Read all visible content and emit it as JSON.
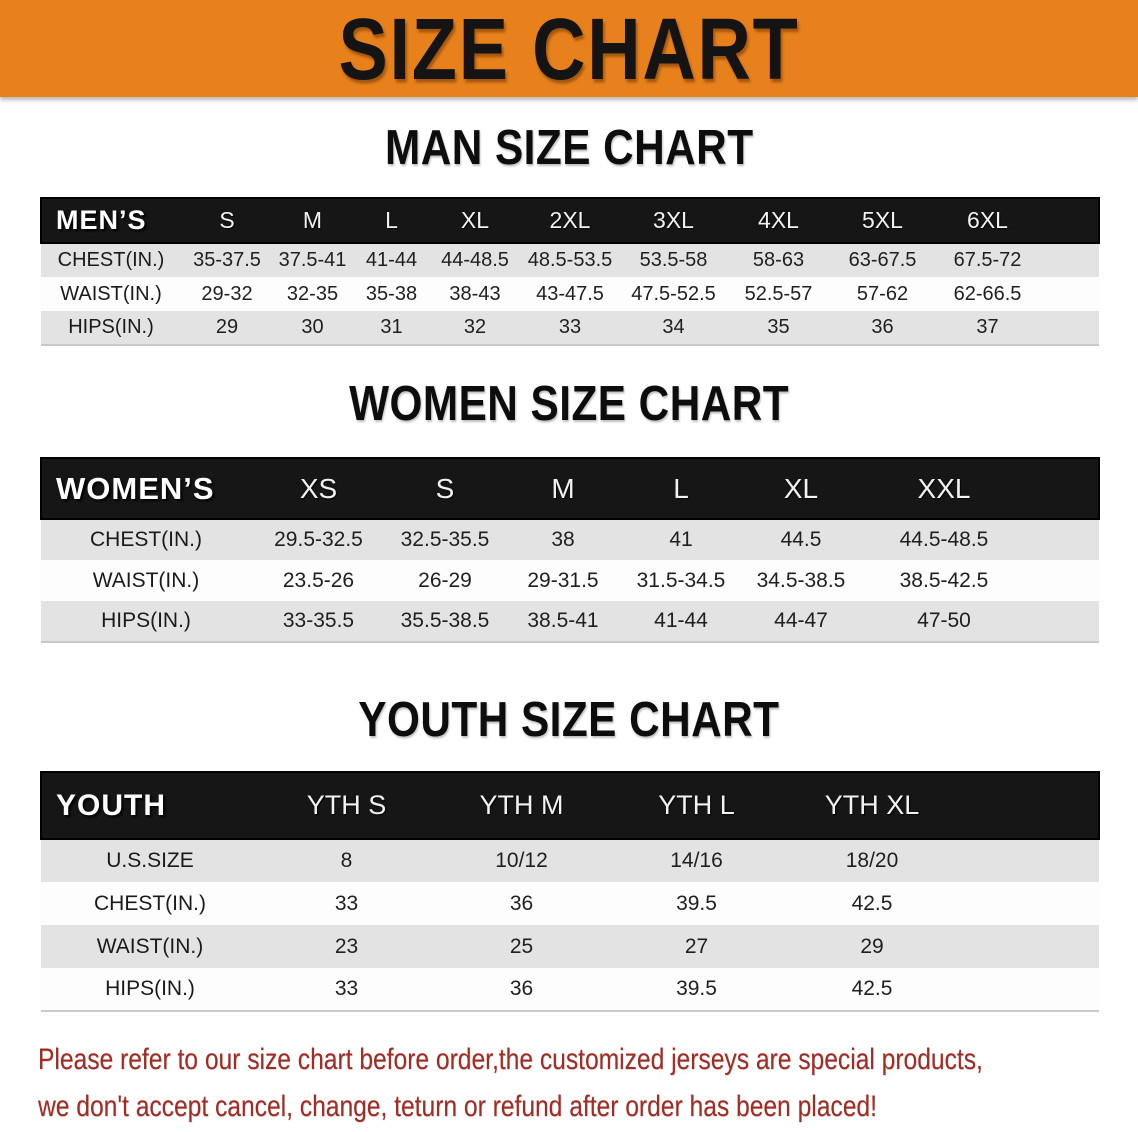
{
  "banner": {
    "title": "SIZE CHART",
    "bg_color": "#e8811b",
    "text_color": "#141414"
  },
  "sections": [
    {
      "id": "men",
      "heading": "MAN SIZE CHART",
      "header_label": "MEN’S",
      "columns": [
        "S",
        "M",
        "L",
        "XL",
        "2XL",
        "3XL",
        "4XL",
        "5XL",
        "6XL"
      ],
      "rows": [
        {
          "label": "CHEST(IN.)",
          "values": [
            "35-37.5",
            "37.5-41",
            "41-44",
            "44-48.5",
            "48.5-53.5",
            "53.5-58",
            "58-63",
            "63-67.5",
            "67.5-72"
          ]
        },
        {
          "label": "WAIST(IN.)",
          "values": [
            "29-32",
            "32-35",
            "35-38",
            "38-43",
            "43-47.5",
            "47.5-52.5",
            "52.5-57",
            "57-62",
            "62-66.5"
          ]
        },
        {
          "label": "HIPS(IN.)",
          "values": [
            "29",
            "30",
            "31",
            "32",
            "33",
            "34",
            "35",
            "36",
            "37"
          ]
        }
      ]
    },
    {
      "id": "women",
      "heading": "WOMEN SIZE CHART",
      "header_label": "WOMEN’S",
      "columns": [
        "XS",
        "S",
        "M",
        "L",
        "XL",
        "XXL"
      ],
      "rows": [
        {
          "label": "CHEST(IN.)",
          "values": [
            "29.5-32.5",
            "32.5-35.5",
            "38",
            "41",
            "44.5",
            "44.5-48.5"
          ]
        },
        {
          "label": "WAIST(IN.)",
          "values": [
            "23.5-26",
            "26-29",
            "29-31.5",
            "31.5-34.5",
            "34.5-38.5",
            "38.5-42.5"
          ]
        },
        {
          "label": "HIPS(IN.)",
          "values": [
            "33-35.5",
            "35.5-38.5",
            "38.5-41",
            "41-44",
            "44-47",
            "47-50"
          ]
        }
      ]
    },
    {
      "id": "youth",
      "heading": "YOUTH SIZE CHART",
      "header_label": "YOUTH",
      "columns": [
        "YTH S",
        "YTH M",
        "YTH L",
        "YTH XL"
      ],
      "rows": [
        {
          "label": "U.S.SIZE",
          "values": [
            "8",
            "10/12",
            "14/16",
            "18/20"
          ]
        },
        {
          "label": "CHEST(IN.)",
          "values": [
            "33",
            "36",
            "39.5",
            "42.5"
          ]
        },
        {
          "label": "WAIST(IN.)",
          "values": [
            "23",
            "25",
            "27",
            "29"
          ]
        },
        {
          "label": "HIPS(IN.)",
          "values": [
            "33",
            "36",
            "39.5",
            "42.5"
          ]
        }
      ]
    }
  ],
  "table_colors": {
    "header_bg": "#161616",
    "header_text": "#ffffff",
    "row_gray": "#e3e3e3",
    "row_white": "#fdfdfd"
  },
  "disclaimer": {
    "line1": "Please refer to our size chart before order,the customized jerseys are special products,",
    "line2": "we don't accept cancel, change, teturn or refund after order has been placed!",
    "color": "#a02c24"
  }
}
